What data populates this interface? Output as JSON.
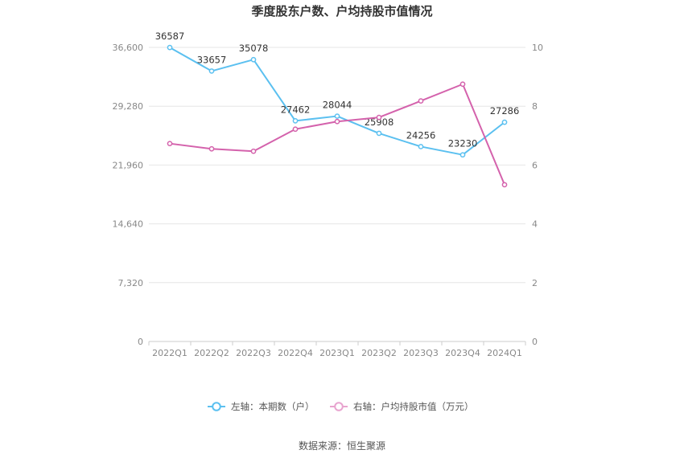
{
  "chart_data": {
    "type": "line",
    "title": "季度股东户数、户均持股市值情况",
    "categories": [
      "2022Q1",
      "2022Q2",
      "2022Q3",
      "2022Q4",
      "2023Q1",
      "2023Q2",
      "2023Q3",
      "2023Q4",
      "2024Q1"
    ],
    "y_left": {
      "ticks": [
        "0",
        "7,320",
        "14,640",
        "21,960",
        "29,280",
        "36,600"
      ],
      "ylim": [
        0,
        36600
      ]
    },
    "y_right": {
      "ticks": [
        "0",
        "2",
        "4",
        "6",
        "8",
        "10"
      ],
      "ylim": [
        0,
        10
      ]
    },
    "series": [
      {
        "name": "左轴：本期数（户）",
        "axis": "left",
        "color": "#5bc0f0",
        "values": [
          36587,
          33657,
          35078,
          27462,
          28044,
          25908,
          24256,
          23230,
          27286
        ],
        "labels": [
          "36587",
          "33657",
          "35078",
          "27462",
          "28044",
          "25908",
          "24256",
          "23230",
          "27286"
        ]
      },
      {
        "name": "右轴：户均持股市值（万元）",
        "axis": "right",
        "color": "#d462ac",
        "values": [
          6.73,
          6.55,
          6.47,
          7.22,
          7.48,
          7.62,
          8.18,
          8.75,
          5.33
        ]
      }
    ],
    "grid": true,
    "legend": "bottom"
  },
  "source": "数据来源：恒生聚源"
}
